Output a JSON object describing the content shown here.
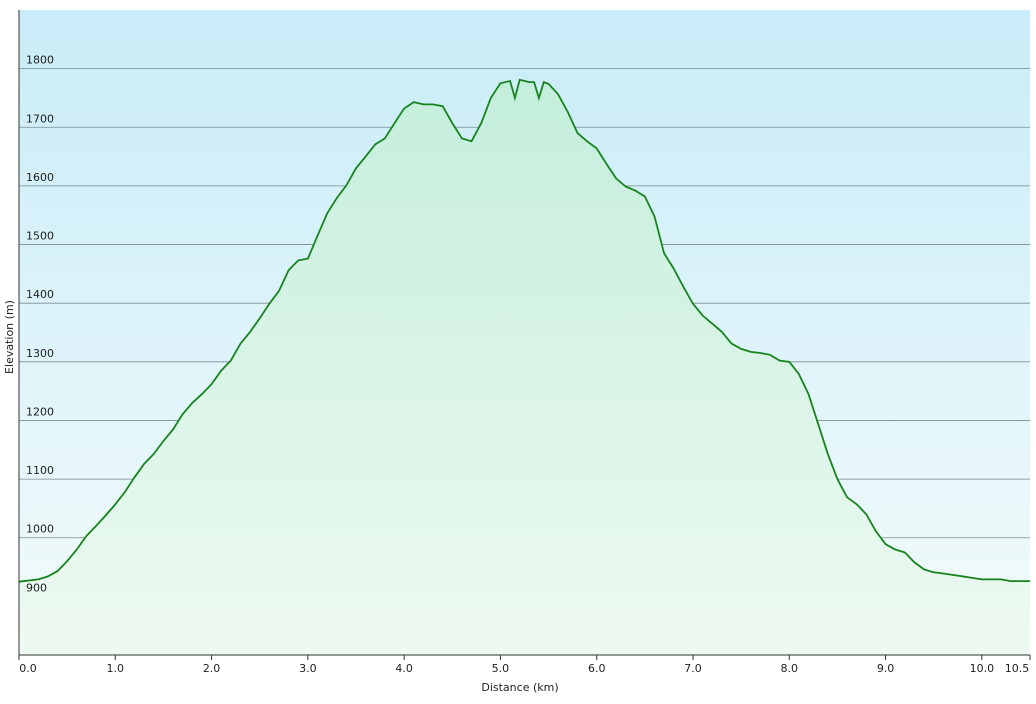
{
  "chart_data": {
    "type": "line",
    "x_label": "Distance  (km)",
    "y_label": "Elevation (m)",
    "x": [
      0,
      0.2,
      0.3,
      0.4,
      0.5,
      0.6,
      0.7,
      0.8,
      0.9,
      1.0,
      1.1,
      1.2,
      1.3,
      1.4,
      1.5,
      1.6,
      1.7,
      1.8,
      1.9,
      2.0,
      2.1,
      2.2,
      2.3,
      2.4,
      2.5,
      2.6,
      2.7,
      2.8,
      2.9,
      3.0,
      3.1,
      3.2,
      3.3,
      3.4,
      3.5,
      3.6,
      3.7,
      3.8,
      3.9,
      4.0,
      4.1,
      4.2,
      4.3,
      4.4,
      4.5,
      4.6,
      4.7,
      4.8,
      4.9,
      5.0,
      5.1,
      5.15,
      5.2,
      5.3,
      5.35,
      5.4,
      5.45,
      5.5,
      5.6,
      5.7,
      5.8,
      5.9,
      6.0,
      6.1,
      6.2,
      6.3,
      6.4,
      6.5,
      6.6,
      6.7,
      6.8,
      6.9,
      7.0,
      7.1,
      7.2,
      7.3,
      7.4,
      7.5,
      7.6,
      7.7,
      7.8,
      7.9,
      8.0,
      8.1,
      8.2,
      8.3,
      8.4,
      8.5,
      8.6,
      8.7,
      8.8,
      8.9,
      9.0,
      9.1,
      9.2,
      9.3,
      9.4,
      9.5,
      9.6,
      9.8,
      10.0,
      10.2,
      10.3,
      10.5
    ],
    "values": [
      925,
      929,
      934,
      943,
      960,
      980,
      1003,
      1020,
      1038,
      1057,
      1078,
      1103,
      1126,
      1143,
      1165,
      1185,
      1211,
      1230,
      1245,
      1262,
      1285,
      1302,
      1331,
      1351,
      1374,
      1399,
      1421,
      1456,
      1473,
      1476,
      1515,
      1553,
      1579,
      1601,
      1630,
      1650,
      1671,
      1681,
      1707,
      1732,
      1743,
      1739,
      1739,
      1736,
      1707,
      1681,
      1676,
      1707,
      1750,
      1775,
      1779,
      1750,
      1781,
      1777,
      1777,
      1750,
      1777,
      1774,
      1756,
      1726,
      1690,
      1676,
      1664,
      1638,
      1613,
      1599,
      1592,
      1582,
      1548,
      1485,
      1459,
      1428,
      1399,
      1379,
      1365,
      1351,
      1331,
      1322,
      1317,
      1315,
      1312,
      1302,
      1300,
      1279,
      1245,
      1194,
      1143,
      1100,
      1069,
      1057,
      1040,
      1011,
      989,
      980,
      975,
      958,
      946,
      941,
      939,
      934,
      929,
      929,
      926,
      926
    ],
    "color": "#16841c",
    "xlim": [
      0,
      10.5
    ],
    "ylim": [
      800,
      1900
    ],
    "xticks": [
      {
        "value": 0,
        "label": "0.0"
      },
      {
        "value": 1,
        "label": "1.0"
      },
      {
        "value": 2,
        "label": "2.0"
      },
      {
        "value": 3,
        "label": "3.0"
      },
      {
        "value": 4,
        "label": "4.0"
      },
      {
        "value": 5,
        "label": "5.0"
      },
      {
        "value": 6,
        "label": "6.0"
      },
      {
        "value": 7,
        "label": "7.0"
      },
      {
        "value": 8,
        "label": "8.0"
      },
      {
        "value": 9,
        "label": "9.0"
      },
      {
        "value": 10,
        "label": "10.0"
      },
      10.5
    ],
    "yticks": [
      900,
      1000,
      1100,
      1200,
      1300,
      1400,
      1500,
      1600,
      1700,
      1800
    ],
    "grid": true
  }
}
